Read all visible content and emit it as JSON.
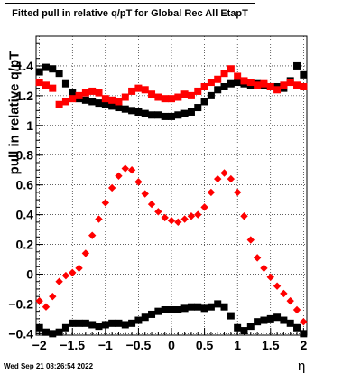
{
  "chart_data": {
    "type": "scatter",
    "title": "Fitted pull in relative q/pT for Global Rec All EtapT",
    "xlabel": "η",
    "ylabel": "pull in relative q/pT",
    "xlim": [
      -2.05,
      2.05
    ],
    "ylim": [
      -0.41,
      1.6
    ],
    "x_ticks": [
      "−2",
      "−1.5",
      "−1",
      "−0.5",
      "0",
      "0.5",
      "1",
      "1.5",
      "2"
    ],
    "x_tick_values": [
      -2,
      -1.5,
      -1,
      -0.5,
      0,
      0.5,
      1,
      1.5,
      2
    ],
    "y_ticks": [
      "−0.4",
      "−0.2",
      "0",
      "0.2",
      "0.4",
      "0.6",
      "0.8",
      "1",
      "1.2",
      "1.4"
    ],
    "y_tick_values": [
      -0.4,
      -0.2,
      0,
      0.2,
      0.4,
      0.6,
      0.8,
      1,
      1.2,
      1.4
    ],
    "grid": true,
    "legend": "none",
    "series": [
      {
        "color": "#000000",
        "marker": "square",
        "x": [
          -2.0,
          -1.9,
          -1.8,
          -1.7,
          -1.6,
          -1.5,
          -1.4,
          -1.3,
          -1.2,
          -1.1,
          -1.0,
          -0.9,
          -0.8,
          -0.7,
          -0.6,
          -0.5,
          -0.4,
          -0.3,
          -0.2,
          -0.1,
          0.0,
          0.1,
          0.2,
          0.3,
          0.4,
          0.5,
          0.6,
          0.7,
          0.8,
          0.9,
          1.0,
          1.1,
          1.2,
          1.3,
          1.4,
          1.5,
          1.6,
          1.7,
          1.8,
          1.9,
          2.0
        ],
        "y": [
          1.36,
          1.39,
          1.38,
          1.35,
          1.28,
          1.22,
          1.18,
          1.17,
          1.16,
          1.15,
          1.14,
          1.13,
          1.12,
          1.11,
          1.1,
          1.09,
          1.08,
          1.07,
          1.07,
          1.06,
          1.06,
          1.07,
          1.08,
          1.09,
          1.12,
          1.16,
          1.2,
          1.24,
          1.26,
          1.28,
          1.29,
          1.28,
          1.27,
          1.28,
          1.27,
          1.26,
          1.26,
          1.25,
          1.3,
          1.4,
          1.34
        ]
      },
      {
        "color": "#ff0000",
        "marker": "square",
        "x": [
          -2.0,
          -1.9,
          -1.8,
          -1.7,
          -1.6,
          -1.5,
          -1.4,
          -1.3,
          -1.2,
          -1.1,
          -1.0,
          -0.9,
          -0.8,
          -0.7,
          -0.6,
          -0.5,
          -0.4,
          -0.3,
          -0.2,
          -0.1,
          0.0,
          0.1,
          0.2,
          0.3,
          0.4,
          0.5,
          0.6,
          0.7,
          0.8,
          0.9,
          1.0,
          1.1,
          1.2,
          1.3,
          1.4,
          1.5,
          1.6,
          1.7,
          1.8,
          1.9,
          2.0
        ],
        "y": [
          1.29,
          1.27,
          1.25,
          1.14,
          1.16,
          1.18,
          1.2,
          1.22,
          1.23,
          1.22,
          1.18,
          1.17,
          1.16,
          1.19,
          1.23,
          1.25,
          1.24,
          1.21,
          1.19,
          1.18,
          1.18,
          1.19,
          1.21,
          1.2,
          1.23,
          1.26,
          1.29,
          1.31,
          1.35,
          1.38,
          1.33,
          1.3,
          1.29,
          1.27,
          1.28,
          1.26,
          1.24,
          1.27,
          1.29,
          1.27,
          1.26
        ]
      },
      {
        "color": "#000000",
        "marker": "square",
        "x": [
          -2.0,
          -1.9,
          -1.8,
          -1.7,
          -1.6,
          -1.5,
          -1.4,
          -1.3,
          -1.2,
          -1.1,
          -1.0,
          -0.9,
          -0.8,
          -0.7,
          -0.6,
          -0.5,
          -0.4,
          -0.3,
          -0.2,
          -0.1,
          0.0,
          0.1,
          0.2,
          0.3,
          0.4,
          0.5,
          0.6,
          0.7,
          0.8,
          0.9,
          1.0,
          1.1,
          1.2,
          1.3,
          1.4,
          1.5,
          1.6,
          1.7,
          1.8,
          1.9,
          2.0
        ],
        "y": [
          -0.36,
          -0.39,
          -0.4,
          -0.39,
          -0.36,
          -0.33,
          -0.33,
          -0.33,
          -0.34,
          -0.35,
          -0.34,
          -0.33,
          -0.33,
          -0.34,
          -0.33,
          -0.31,
          -0.29,
          -0.27,
          -0.25,
          -0.24,
          -0.24,
          -0.24,
          -0.23,
          -0.22,
          -0.22,
          -0.23,
          -0.22,
          -0.2,
          -0.22,
          -0.28,
          -0.36,
          -0.38,
          -0.35,
          -0.32,
          -0.31,
          -0.3,
          -0.29,
          -0.31,
          -0.33,
          -0.36,
          -0.4
        ]
      },
      {
        "color": "#ff0000",
        "marker": "diamond",
        "x": [
          -2.0,
          -1.9,
          -1.8,
          -1.7,
          -1.6,
          -1.5,
          -1.4,
          -1.3,
          -1.2,
          -1.1,
          -1.0,
          -0.9,
          -0.8,
          -0.7,
          -0.6,
          -0.5,
          -0.4,
          -0.3,
          -0.2,
          -0.1,
          0.0,
          0.1,
          0.2,
          0.3,
          0.4,
          0.5,
          0.6,
          0.7,
          0.8,
          0.9,
          1.0,
          1.1,
          1.2,
          1.3,
          1.4,
          1.5,
          1.6,
          1.7,
          1.8,
          1.9,
          2.0
        ],
        "y": [
          -0.18,
          -0.22,
          -0.15,
          -0.05,
          -0.01,
          0.01,
          0.04,
          0.14,
          0.26,
          0.37,
          0.48,
          0.58,
          0.66,
          0.71,
          0.7,
          0.62,
          0.54,
          0.47,
          0.42,
          0.38,
          0.36,
          0.35,
          0.37,
          0.39,
          0.4,
          0.45,
          0.55,
          0.64,
          0.68,
          0.64,
          0.55,
          0.39,
          0.23,
          0.11,
          0.04,
          -0.02,
          -0.08,
          -0.13,
          -0.18,
          -0.24,
          -0.32
        ]
      }
    ]
  },
  "title": "Fitted pull in relative q/pT for Global Rec All EtapT",
  "ylabel": "pull in relative q/pT",
  "xlabel": "η",
  "timestamp": "Wed Sep 21 08:26:54 2022"
}
